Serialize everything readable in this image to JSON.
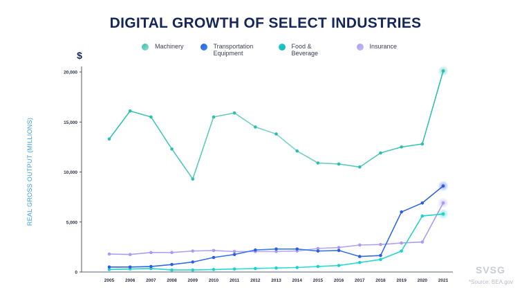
{
  "chart_data": {
    "type": "line",
    "title": "DIGITAL GROWTH OF SELECT INDUSTRIES",
    "ylabel": "REAL GROSS OUTPUT (MILLIONS)",
    "yunit": "$",
    "x": [
      "2005",
      "2006",
      "2007",
      "2008",
      "2009",
      "2010",
      "2011",
      "2012",
      "2013",
      "2014",
      "2015",
      "2016",
      "2017",
      "2018",
      "2019",
      "2020",
      "2021"
    ],
    "ylim": [
      0,
      20000
    ],
    "yticks": [
      0,
      5000,
      10000,
      15000,
      20000
    ],
    "ytick_labels": [
      "0",
      "5,000",
      "10,000",
      "15,000",
      "20,000"
    ],
    "grid": false,
    "legend_position": "top",
    "series": [
      {
        "name": "Machinery",
        "color": "#2bbfae",
        "color_alt": "#7fd3c8",
        "values": [
          13300,
          16100,
          15500,
          12300,
          9300,
          15500,
          15900,
          14500,
          13800,
          12100,
          10900,
          10800,
          10500,
          11900,
          12500,
          12800,
          20100
        ]
      },
      {
        "name": "Transportation Equipment",
        "color": "#2a5de0",
        "color_alt": "#3b7ef0",
        "values": [
          500,
          500,
          550,
          750,
          1000,
          1450,
          1750,
          2200,
          2300,
          2300,
          2100,
          2150,
          1550,
          1650,
          6000,
          6900,
          8600
        ]
      },
      {
        "name": "Food & Beverage",
        "color": "#1fd1c8",
        "color_alt": "#2ee0d4",
        "values": [
          250,
          300,
          350,
          200,
          200,
          250,
          300,
          350,
          400,
          450,
          550,
          650,
          950,
          1250,
          2100,
          5600,
          5800
        ]
      },
      {
        "name": "Insurance",
        "color": "#a99af2",
        "color_alt": "#b9acf5",
        "values": [
          1800,
          1750,
          1950,
          1950,
          2100,
          2150,
          2050,
          2050,
          2050,
          2100,
          2350,
          2450,
          2700,
          2750,
          2900,
          3000,
          6900
        ]
      }
    ]
  },
  "brand": "SVSG",
  "source": "*Source: BEA.gov"
}
